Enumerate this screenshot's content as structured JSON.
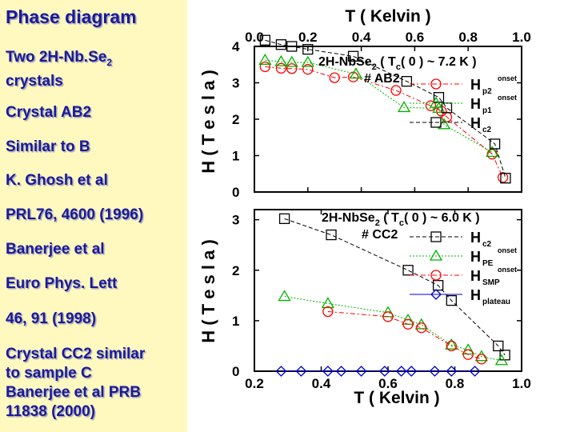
{
  "sidebar": {
    "title": "Phase diagram",
    "lines": [
      [
        "Two 2H-Nb.Se",
        "2",
        "crystals"
      ],
      "Crystal AB2",
      "Similar to B",
      "K. Ghosh et al",
      "PRL76, 4600 (1996)",
      "Banerjee et al",
      "Euro Phys. Lett",
      "46, 91 (1998)",
      [
        "Crystal CC2 similar",
        "to sample C",
        "Banerjee et al PRB",
        "11838 (2000)"
      ]
    ]
  },
  "colors": {
    "sidebar_bg": "#fff9bf",
    "sidebar_text": "#1a1a99",
    "red": "#ff0000",
    "green": "#00b300",
    "black": "#000000",
    "blue": "#0000cc"
  },
  "chart_data": [
    {
      "type": "scatter",
      "title": "T ( Kelvin )",
      "ylabel": "H ( T e s l a )",
      "xlim": [
        0.0,
        1.0
      ],
      "ylim": [
        0,
        4
      ],
      "x_ticks": [
        "0.0",
        "0.2",
        "0.4",
        "0.6",
        "0.8",
        "1.0"
      ],
      "y_ticks": [
        "0",
        "1",
        "2",
        "3",
        "4"
      ],
      "annotation": {
        "line1": [
          "2H-NbSe",
          "2",
          " ( T",
          "c",
          "( 0 ) ~ 7.2 K )"
        ],
        "line2": "# AB2"
      },
      "series": [
        {
          "name": "H",
          "sub": "p2",
          "sup": "onset",
          "color": "#ff0000",
          "marker": "circle",
          "dash": "6,3,2,3",
          "points": [
            [
              0.04,
              3.44
            ],
            [
              0.1,
              3.4
            ],
            [
              0.14,
              3.39
            ],
            [
              0.2,
              3.37
            ],
            [
              0.3,
              3.14
            ],
            [
              0.37,
              3.16
            ],
            [
              0.53,
              2.79
            ],
            [
              0.66,
              2.37
            ],
            [
              0.7,
              2.22
            ],
            [
              0.72,
              2.06
            ],
            [
              0.89,
              1.04
            ],
            [
              0.93,
              0.4
            ]
          ]
        },
        {
          "name": "H",
          "sub": "p1",
          "sup": "onset",
          "color": "#00b300",
          "marker": "triangle",
          "dash": "2,2",
          "points": [
            [
              0.04,
              3.62
            ],
            [
              0.1,
              3.58
            ],
            [
              0.14,
              3.56
            ],
            [
              0.2,
              3.56
            ],
            [
              0.38,
              3.24
            ],
            [
              0.56,
              2.32
            ],
            [
              0.69,
              2.3
            ],
            [
              0.71,
              1.85
            ],
            [
              0.89,
              1.09
            ]
          ]
        },
        {
          "name": "H",
          "sub": "c2",
          "sup": "",
          "color": "#000000",
          "marker": "square",
          "dash": "5,3",
          "points": [
            [
              0.04,
              4.17
            ],
            [
              0.1,
              4.05
            ],
            [
              0.14,
              4.0
            ],
            [
              0.2,
              3.92
            ],
            [
              0.37,
              3.73
            ],
            [
              0.57,
              3.04
            ],
            [
              0.69,
              2.6
            ],
            [
              0.72,
              2.31
            ],
            [
              0.9,
              1.32
            ],
            [
              0.94,
              0.38
            ]
          ]
        }
      ]
    },
    {
      "type": "scatter",
      "title": "",
      "xlabel": "T ( Kelvin )",
      "ylabel": "H ( T e s l a )",
      "xlim": [
        0.2,
        1.0
      ],
      "ylim": [
        0,
        3.2
      ],
      "x_ticks": [
        "0.2",
        "0.4",
        "0.6",
        "0.8",
        "1.0"
      ],
      "y_ticks": [
        "0",
        "1",
        "2",
        "3"
      ],
      "annotation": {
        "line1": [
          "2H-NbSe",
          "2",
          " ( T",
          "c",
          "( 0 ) ~ 6.0 K )"
        ],
        "line2": "# CC2"
      },
      "series": [
        {
          "name": "H",
          "sub": "c2",
          "sup": "",
          "color": "#000000",
          "marker": "square",
          "dash": "5,3",
          "points": [
            [
              0.29,
              3.02
            ],
            [
              0.43,
              2.7
            ],
            [
              0.66,
              2.0
            ],
            [
              0.75,
              1.7
            ],
            [
              0.79,
              1.4
            ],
            [
              0.93,
              0.5
            ],
            [
              0.95,
              0.32
            ]
          ]
        },
        {
          "name": "H",
          "sub": "PE",
          "sup": "onset",
          "color": "#00b300",
          "marker": "triangle",
          "dash": "2,2",
          "points": [
            [
              0.29,
              1.48
            ],
            [
              0.42,
              1.34
            ],
            [
              0.6,
              1.16
            ],
            [
              0.66,
              1.01
            ],
            [
              0.7,
              0.92
            ],
            [
              0.79,
              0.52
            ],
            [
              0.84,
              0.42
            ],
            [
              0.88,
              0.29
            ],
            [
              0.94,
              0.21
            ]
          ]
        },
        {
          "name": "H",
          "sub": "SMP",
          "sup": "onset",
          "color": "#ff0000",
          "marker": "circle",
          "dash": "6,3,2,3",
          "points": [
            [
              0.42,
              1.18
            ],
            [
              0.6,
              1.08
            ],
            [
              0.66,
              0.93
            ],
            [
              0.7,
              0.86
            ],
            [
              0.79,
              0.5
            ],
            [
              0.84,
              0.33
            ],
            [
              0.88,
              0.24
            ]
          ]
        },
        {
          "name": "H",
          "sub": "plateau",
          "sup": "",
          "color": "#0000cc",
          "marker": "diamond",
          "dash": "",
          "points": [
            [
              0.28,
              0.0
            ],
            [
              0.34,
              0.0
            ],
            [
              0.42,
              0.0
            ],
            [
              0.46,
              0.0
            ],
            [
              0.52,
              0.0
            ],
            [
              0.59,
              0.0
            ],
            [
              0.64,
              0.0
            ],
            [
              0.67,
              0.0
            ],
            [
              0.74,
              0.0
            ],
            [
              0.79,
              0.0
            ],
            [
              0.86,
              0.0
            ]
          ]
        }
      ]
    }
  ]
}
